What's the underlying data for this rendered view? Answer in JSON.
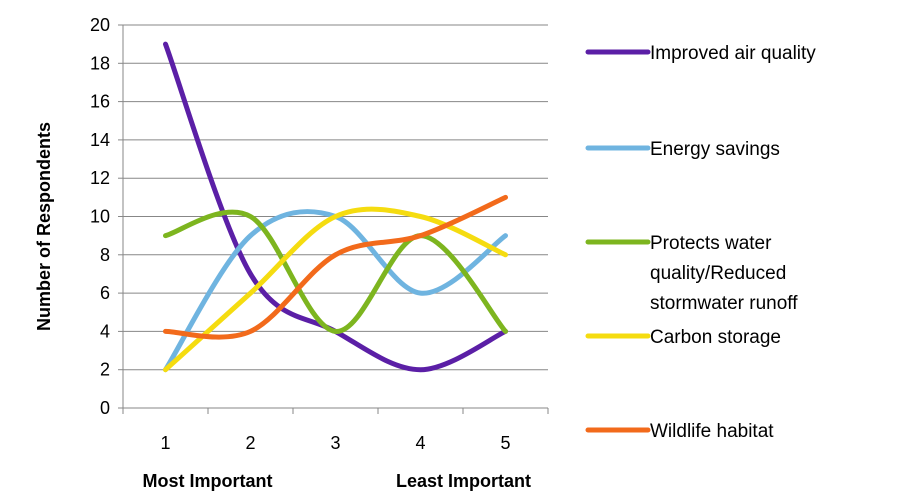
{
  "chart_data": {
    "type": "line",
    "smooth": true,
    "categories": [
      "1",
      "2",
      "3",
      "4",
      "5"
    ],
    "xlabel_left": "Most Important",
    "xlabel_right": "Least Important",
    "ylabel": "Number of Respondents",
    "ylim": [
      0,
      20
    ],
    "yticks": [
      "0",
      "2",
      "4",
      "6",
      "8",
      "10",
      "12",
      "14",
      "16",
      "18",
      "20"
    ],
    "grid": "horizontal",
    "legend_position": "right",
    "series": [
      {
        "name": "Improved air quality",
        "color": "#5B1FA6",
        "values": [
          19,
          7,
          4,
          2,
          4
        ]
      },
      {
        "name": "Energy savings",
        "color": "#6FB4E0",
        "values": [
          2,
          9,
          10,
          6,
          9
        ]
      },
      {
        "name": "Protects water quality/Reduced stormwater runoff",
        "name_lines": [
          "Protects water",
          "quality/Reduced",
          "stormwater runoff"
        ],
        "color": "#7DB51F",
        "values": [
          9,
          10,
          4,
          9,
          4
        ]
      },
      {
        "name": "Carbon storage",
        "color": "#F5DC10",
        "values": [
          2,
          6,
          10,
          10,
          8
        ]
      },
      {
        "name": "Wildlife habitat",
        "color": "#F26A1B",
        "values": [
          4,
          4,
          8,
          9,
          11
        ]
      }
    ]
  }
}
